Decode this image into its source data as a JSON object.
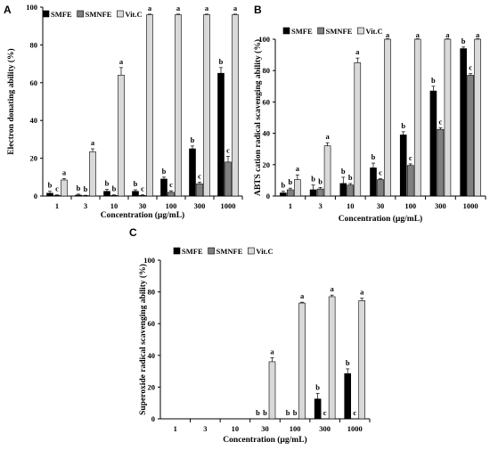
{
  "chart_data": [
    {
      "panel": "A",
      "type": "bar",
      "ylabel": "Electron donating ability (%)",
      "xlabel": "Concentration (µg/mL)",
      "ylim": [
        0,
        100
      ],
      "yticks": [
        0,
        20,
        40,
        60,
        80,
        100
      ],
      "categories": [
        "1",
        "3",
        "10",
        "30",
        "100",
        "300",
        "1000"
      ],
      "legend_position": "top-right",
      "series": [
        {
          "name": "SMFE",
          "color": "#000000",
          "values": [
            1.5,
            0.5,
            2.5,
            2.5,
            9,
            25,
            65
          ],
          "errors": [
            1,
            0.5,
            1,
            0.8,
            1,
            1.5,
            3
          ]
        },
        {
          "name": "SMNFE",
          "color": "#808080",
          "values": [
            0.3,
            0.2,
            0.3,
            0.3,
            2,
            6.5,
            18
          ],
          "errors": [
            0.3,
            0.2,
            0.3,
            0.3,
            0.8,
            0.8,
            3
          ]
        },
        {
          "name": "Vit.C",
          "color": "#d9d9d9",
          "values": [
            8.5,
            23.5,
            64,
            96,
            96,
            96,
            96
          ],
          "errors": [
            0.8,
            1.5,
            4,
            0.3,
            0.3,
            0.3,
            0.3
          ]
        }
      ],
      "letters": [
        [
          "b",
          "c",
          "a"
        ],
        [
          "b",
          "b",
          "a"
        ],
        [
          "b",
          "b",
          "a"
        ],
        [
          "b",
          "c",
          "a"
        ],
        [
          "b",
          "c",
          "a"
        ],
        [
          "b",
          "c",
          "a"
        ],
        [
          "b",
          "c",
          "a"
        ]
      ]
    },
    {
      "panel": "B",
      "type": "bar",
      "ylabel": "ABTS cation radical scavenging ability (%)",
      "xlabel": "Concentration (µg/mL)",
      "ylim": [
        0,
        100
      ],
      "yticks": [
        0,
        20,
        40,
        60,
        80,
        100
      ],
      "categories": [
        "1",
        "3",
        "10",
        "30",
        "100",
        "300",
        "1000"
      ],
      "legend_position": "top",
      "series": [
        {
          "name": "SMFE",
          "color": "#000000",
          "values": [
            2,
            4,
            8,
            18,
            39,
            67,
            94
          ],
          "errors": [
            1,
            3,
            4,
            3,
            2,
            3,
            1
          ]
        },
        {
          "name": "SMNFE",
          "color": "#808080",
          "values": [
            4,
            4.5,
            7,
            10.5,
            19.5,
            42.5,
            77
          ],
          "errors": [
            1,
            1,
            1,
            0.5,
            1,
            1,
            1
          ]
        },
        {
          "name": "Vit.C",
          "color": "#d9d9d9",
          "values": [
            10.5,
            32,
            85,
            100,
            100,
            100,
            100
          ],
          "errors": [
            3,
            2,
            3,
            0.3,
            0.3,
            0.3,
            0.3
          ]
        }
      ],
      "letters": [
        [
          "b",
          "b",
          "a"
        ],
        [
          "b",
          "b",
          "a"
        ],
        [
          "b",
          "b",
          "a"
        ],
        [
          "b",
          "c",
          "a"
        ],
        [
          "b",
          "c",
          "a"
        ],
        [
          "b",
          "c",
          "a"
        ],
        [
          "b",
          "c",
          "a"
        ]
      ]
    },
    {
      "panel": "C",
      "type": "bar",
      "ylabel": "Superoxide radical scavenging ability (%)",
      "xlabel": "Concentration (µg/mL)",
      "ylim": [
        0,
        100
      ],
      "yticks": [
        0,
        20,
        40,
        60,
        80,
        100
      ],
      "categories": [
        "1",
        "3",
        "10",
        "30",
        "100",
        "300",
        "1000"
      ],
      "legend_position": "top",
      "series": [
        {
          "name": "SMFE",
          "color": "#000000",
          "values": [
            0,
            0,
            0,
            0,
            0,
            12.5,
            28.5
          ],
          "errors": [
            0,
            0,
            0,
            0,
            0,
            3.5,
            3
          ]
        },
        {
          "name": "SMNFE",
          "color": "#808080",
          "values": [
            0,
            0,
            0,
            0,
            0,
            0,
            0
          ],
          "errors": [
            0,
            0,
            0,
            0,
            0,
            0,
            0
          ]
        },
        {
          "name": "Vit.C",
          "color": "#d9d9d9",
          "values": [
            0,
            0,
            0,
            36,
            73,
            77,
            74.5
          ],
          "errors": [
            0,
            0,
            0,
            2.5,
            0.5,
            1,
            1.5
          ]
        }
      ],
      "letters": [
        [
          "",
          "",
          ""
        ],
        [
          "",
          "",
          ""
        ],
        [
          "",
          "",
          ""
        ],
        [
          "b",
          "b",
          "a"
        ],
        [
          "b",
          "b",
          "a"
        ],
        [
          "b",
          "c",
          "a"
        ],
        [
          "b",
          "c",
          "a"
        ]
      ]
    }
  ]
}
